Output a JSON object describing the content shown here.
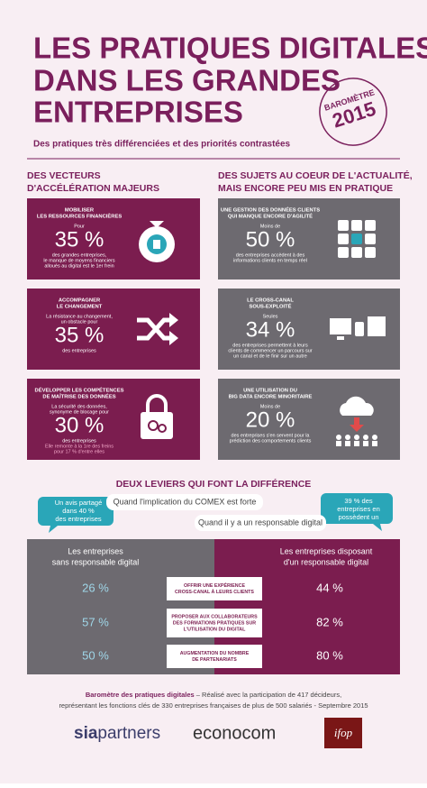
{
  "header": {
    "title_lines": [
      "LES PRATIQUES DIGITALES",
      "DANS LES GRANDES",
      "ENTREPRISES"
    ],
    "badge": [
      "BAROMÈTRE",
      "2015"
    ],
    "subtitle": "Des pratiques très différenciées et des priorités contrastées"
  },
  "left_section": {
    "heading": [
      "DES VECTEURS",
      "D'ACCÉLÉRATION MAJEURS"
    ],
    "cards": [
      {
        "title": [
          "MOBILISER",
          "LES RESSOURCES FINANCIÈRES"
        ],
        "intro": [
          "Pour"
        ],
        "value": "35 %",
        "text": [
          "des grandes entreprises,",
          "le manque de moyens financiers",
          "alloués au digital est le 1er frein"
        ],
        "note": []
      },
      {
        "title": [
          "ACCOMPAGNER",
          "LE CHANGEMENT"
        ],
        "intro": [
          "La résistance au changement,",
          "un obstacle pour"
        ],
        "value": "35 %",
        "text": [
          "des entreprises"
        ],
        "note": []
      },
      {
        "title": [
          "DÉVELOPPER LES COMPÉTENCES",
          "DE MAÎTRISE DES DONNÉES"
        ],
        "intro": [
          "La sécurité des données,",
          "synonyme de blocage pour"
        ],
        "value": "30 %",
        "text": [
          "des entreprises"
        ],
        "note": [
          "Elle remonte à la 1re des freins",
          "pour 17 % d'entre elles"
        ]
      }
    ]
  },
  "right_section": {
    "heading": [
      "DES SUJETS AU COEUR DE L'ACTUALITÉ,",
      "MAIS ENCORE PEU MIS EN PRATIQUE"
    ],
    "cards": [
      {
        "title": [
          "UNE GESTION DES DONNÉES CLIENTS",
          "QUI MANQUE ENCORE D'AGILITÉ"
        ],
        "intro": [
          "Moins de"
        ],
        "value": "50 %",
        "text": [
          "des entreprises accèdent à des",
          "informations clients en temps réel"
        ],
        "note": []
      },
      {
        "title": [
          "LE CROSS-CANAL",
          "SOUS-EXPLOITÉ"
        ],
        "intro": [
          "Seules"
        ],
        "value": "34 %",
        "text": [
          "des entreprises permettent à leurs",
          "clients de commencer un parcours sur",
          "un canal et de le finir sur un autre"
        ],
        "note": []
      },
      {
        "title": [
          "UNE UTILISATION DU",
          "BIG DATA ENCORE MINORITAIRE"
        ],
        "intro": [
          "Moins de"
        ],
        "value": "20 %",
        "text": [
          "des entreprises s'en servent pour la",
          "prédiction des comportements clients"
        ],
        "note": []
      }
    ]
  },
  "levers": {
    "heading": "DEUX LEVIERS QUI FONT LA DIFFÉRENCE",
    "lever_1": "Quand l'implication du COMEX est forte",
    "bubble_1": [
      "Un avis partagé",
      "dans 40 %",
      "des entreprises"
    ],
    "lever_2": "Quand il y a un responsable digital",
    "bubble_2": [
      "39 % des",
      "entreprises en",
      "possèdent un"
    ]
  },
  "table": {
    "header_left": [
      "Les entreprises",
      "sans responsable digital"
    ],
    "header_right": [
      "Les entreprises disposant",
      "d'un responsable digital"
    ],
    "rows": [
      {
        "label": [
          "OFFRIR UNE EXPÉRIENCE",
          "CROSS-CANAL À LEURS CLIENTS"
        ],
        "left": "26 %",
        "right": "44 %"
      },
      {
        "label": [
          "PROPOSER AUX COLLABORATEURS",
          "DES FORMATIONS PRATIQUES SUR",
          "L'UTILISATION DU DIGITAL"
        ],
        "left": "57 %",
        "right": "82 %"
      },
      {
        "label": [
          "AUGMENTATION DU NOMBRE",
          "DE PARTENARIATS"
        ],
        "left": "50 %",
        "right": "80 %"
      }
    ]
  },
  "footer": {
    "source_bold": "Baromètre des pratiques digitales",
    "source_rest": " – Réalisé avec la participation de 417 décideurs,",
    "source_line_2": "représentant les fonctions clés de 330 entreprises françaises de plus de 500 salariés - Septembre 2015",
    "logos": [
      "sia",
      "partners",
      "econocom",
      "ifop"
    ]
  }
}
